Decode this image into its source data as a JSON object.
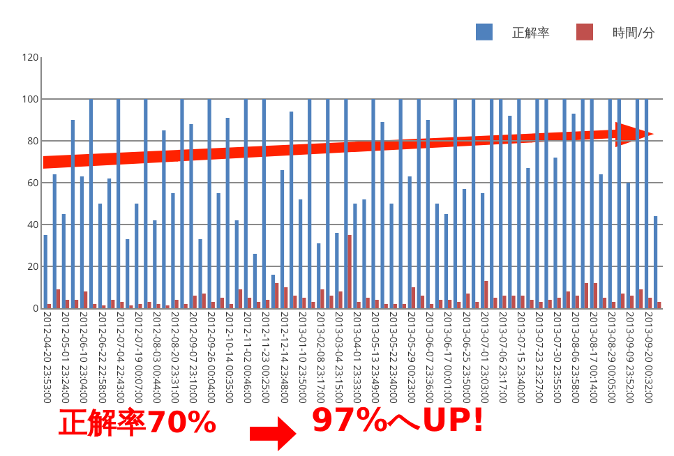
{
  "chart_data": {
    "type": "bar",
    "categories": [
      "2012-04-20 23:53:00",
      null,
      "2012-05-01 23:24:00",
      null,
      "2012-06-10 23:04:00",
      null,
      "2012-06-22 22:58:00",
      null,
      "2012-07-04 22:43:00",
      null,
      "2012-07-19 00:07:00",
      null,
      "2012-08-03 00:44:00",
      null,
      "2012-08-20 23:31:00",
      null,
      "2012-09-07 23:10:00",
      null,
      "2012-09-26 00:04:00",
      null,
      "2012-10-14 00:35:00",
      null,
      "2012-11-02 00:46:00",
      null,
      "2012-11-23 00:25:00",
      null,
      "2012-12-14 23:48:00",
      null,
      "2013-01-10 23:50:00",
      null,
      "2013-02-08 23:17:00",
      null,
      "2013-03-04 23:15:00",
      null,
      "2013-04-01 23:33:00",
      null,
      "2013-05-13 23:49:00",
      null,
      "2013-05-22 23:40:00",
      null,
      "2013-05-29 00:23:00",
      null,
      "2013-06-07 23:36:00",
      null,
      "2013-06-17 00:01:00",
      null,
      "2013-06-25 23:50:00",
      null,
      "2013-07-01 23:03:00",
      null,
      "2013-07-06 23:17:00",
      null,
      "2013-07-15 23:40:00",
      null,
      "2013-07-23 23:27:00",
      null,
      "2013-07-30 23:55:00",
      null,
      "2013-08-06 23:58:00",
      null,
      "2013-08-17 00:14:00",
      null,
      "2013-08-29 00:05:00",
      null,
      "2013-09-09 23:52:00",
      null,
      "2013-09-20 00:32:00",
      null
    ],
    "series": [
      {
        "name": "正解率",
        "color": "#4f81bd",
        "values": [
          35,
          64,
          45,
          90,
          63,
          100,
          50,
          62,
          100,
          33,
          50,
          100,
          42,
          85,
          55,
          100,
          88,
          33,
          100,
          55,
          91,
          42,
          100,
          26,
          100,
          16,
          66,
          94,
          52,
          100,
          31,
          100,
          36,
          100,
          50,
          52,
          100,
          89,
          50,
          100,
          63,
          100,
          90,
          50,
          45,
          100,
          57,
          100,
          55,
          100,
          100,
          92,
          100,
          67,
          100,
          100,
          72,
          100,
          93,
          100,
          100,
          64,
          100,
          100,
          60,
          100,
          100,
          44
        ]
      },
      {
        "name": "時間/分",
        "color": "#c0504d",
        "values": [
          2,
          9,
          4,
          4,
          8,
          2,
          1,
          4,
          3,
          1,
          2,
          3,
          2,
          1,
          4,
          2,
          6,
          7,
          3,
          5,
          2,
          9,
          5,
          3,
          4,
          12,
          10,
          6,
          5,
          3,
          9,
          6,
          8,
          35,
          3,
          5,
          4,
          2,
          2,
          2,
          10,
          6,
          2,
          4,
          4,
          3,
          7,
          3,
          13,
          5,
          6,
          6,
          6,
          4,
          3,
          4,
          5,
          8,
          6,
          12,
          12,
          5,
          3,
          7,
          6,
          9,
          5,
          3
        ]
      }
    ],
    "ylim": [
      0,
      120
    ],
    "yticks": [
      0,
      20,
      40,
      60,
      80,
      100,
      120
    ],
    "grid": "y",
    "legend": "top right",
    "annotations": [
      "正解率70%",
      "97%へUP!"
    ]
  }
}
